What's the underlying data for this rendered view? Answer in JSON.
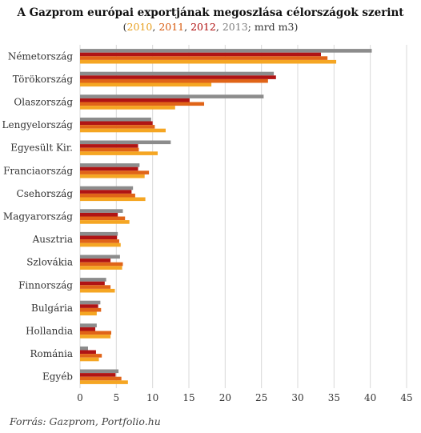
{
  "chart_data": {
    "type": "bar",
    "orientation": "horizontal",
    "title": "A Gazprom európai exportjának megoszlása célországok szerint",
    "subtitle_parts": [
      {
        "text": "(",
        "color": "#333333"
      },
      {
        "text": "2010",
        "color": "#e8a020"
      },
      {
        "text": ", ",
        "color": "#333333"
      },
      {
        "text": "2011",
        "color": "#d85c10"
      },
      {
        "text": ", ",
        "color": "#333333"
      },
      {
        "text": "2012",
        "color": "#b01010"
      },
      {
        "text": ", ",
        "color": "#333333"
      },
      {
        "text": "2013",
        "color": "#808080"
      },
      {
        "text": "; mrd m3)",
        "color": "#333333"
      }
    ],
    "categories": [
      "Németország",
      "Törökország",
      "Olaszország",
      "Lengyelország",
      "Egyesült Kir.",
      "Franciaország",
      "Csehország",
      "Magyarország",
      "Ausztria",
      "Szlovákia",
      "Finnország",
      "Bulgária",
      "Hollandia",
      "Románia",
      "Egyéb"
    ],
    "series": [
      {
        "name": "2013",
        "color": "#8c8c8c",
        "values": [
          40.2,
          26.7,
          25.3,
          9.8,
          12.5,
          8.2,
          7.3,
          5.9,
          5.2,
          5.5,
          3.6,
          2.8,
          2.3,
          1.1,
          5.3
        ]
      },
      {
        "name": "2012",
        "color": "#b01414",
        "values": [
          33.2,
          27.0,
          15.1,
          10.0,
          8.0,
          8.0,
          7.1,
          5.2,
          5.1,
          4.2,
          3.4,
          2.5,
          2.1,
          2.2,
          4.9
        ]
      },
      {
        "name": "2011",
        "color": "#e06418",
        "values": [
          34.1,
          25.9,
          17.1,
          10.3,
          8.1,
          9.5,
          7.6,
          6.2,
          5.4,
          5.9,
          4.2,
          2.9,
          4.3,
          3.0,
          5.7
        ]
      },
      {
        "name": "2010",
        "color": "#f5a623",
        "values": [
          35.3,
          18.1,
          13.1,
          11.8,
          10.7,
          8.9,
          9.0,
          6.8,
          5.6,
          5.8,
          4.8,
          2.3,
          4.2,
          2.6,
          6.6
        ]
      }
    ],
    "xlim": [
      0,
      45
    ],
    "xticks": [
      "0",
      "5",
      "10",
      "15",
      "20",
      "25",
      "30",
      "35",
      "40",
      "45"
    ],
    "grid": true,
    "source": "Forrás: Gazprom, Portfolio.hu"
  }
}
